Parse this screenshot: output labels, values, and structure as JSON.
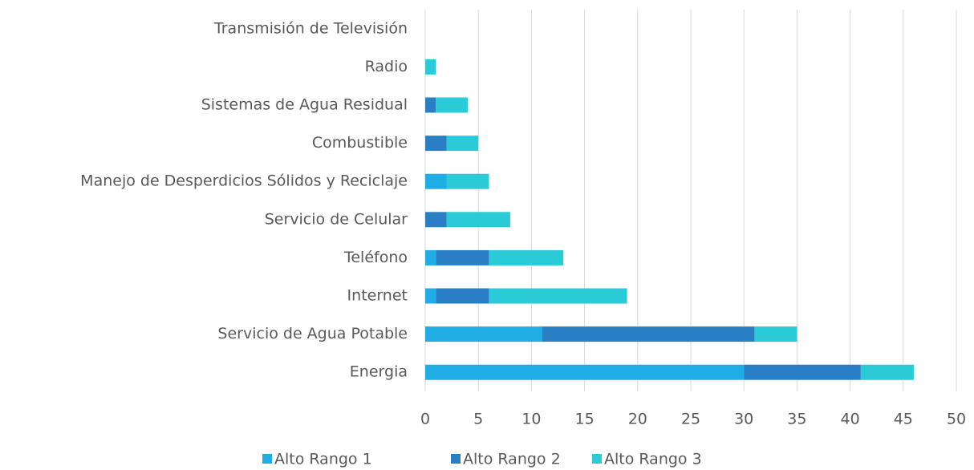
{
  "chart_data": {
    "type": "stacked-bar-horizontal",
    "categories": [
      "Energia",
      "Servicio de Agua Potable",
      "Internet",
      "Teléfono",
      "Servicio de Celular",
      "Manejo de Desperdicios Sólidos y Reciclaje",
      "Combustible",
      "Sistemas de Agua Residual",
      "Radio",
      "Transmisión de Televisión"
    ],
    "series": [
      {
        "name": "Alto Rango 1",
        "color": "#1fade3",
        "values": [
          30,
          11,
          1,
          1,
          0,
          2,
          0,
          0,
          0,
          0
        ]
      },
      {
        "name": "Alto Rango 2",
        "color": "#2a7fc4",
        "values": [
          11,
          20,
          5,
          5,
          2,
          0,
          2,
          1,
          0,
          0
        ]
      },
      {
        "name": "Alto Rango 3",
        "color": "#2acbd6",
        "values": [
          5,
          4,
          13,
          7,
          6,
          4,
          3,
          3,
          1,
          0
        ]
      }
    ],
    "xlim": [
      0,
      50
    ],
    "xticks": [
      0,
      5,
      10,
      15,
      20,
      25,
      30,
      35,
      40,
      45,
      50
    ],
    "grid": true,
    "legend": "bottom"
  }
}
